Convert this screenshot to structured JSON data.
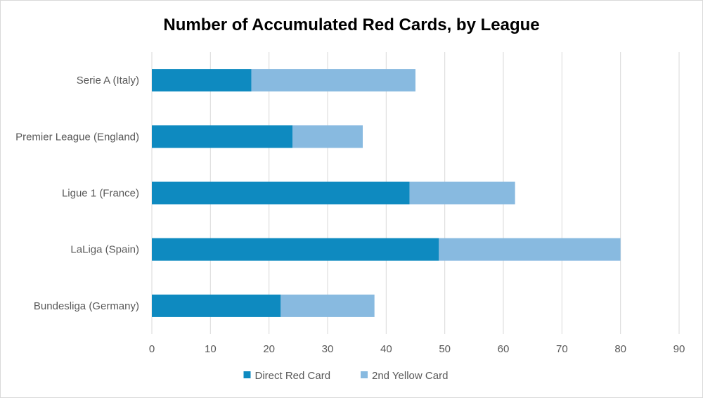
{
  "chart_data": {
    "type": "bar",
    "orientation": "horizontal",
    "stacked": true,
    "title": "Number of Accumulated Red Cards, by League",
    "xlabel": "",
    "ylabel": "",
    "categories": [
      "Serie A (Italy)",
      "Premier League (England)",
      "Ligue 1 (France)",
      "LaLiga (Spain)",
      "Bundesliga (Germany)"
    ],
    "series": [
      {
        "name": "Direct Red Card",
        "color": "#0e8ac0",
        "values": [
          17,
          24,
          44,
          49,
          22
        ]
      },
      {
        "name": "2nd Yellow Card",
        "color": "#88bae0",
        "values": [
          28,
          12,
          18,
          31,
          16
        ]
      }
    ],
    "xlim": [
      0,
      90
    ],
    "xticks": [
      0,
      10,
      20,
      30,
      40,
      50,
      60,
      70,
      80,
      90
    ],
    "grid": "vertical",
    "gridColor": "#d9d9d9",
    "legend": "bottom"
  }
}
